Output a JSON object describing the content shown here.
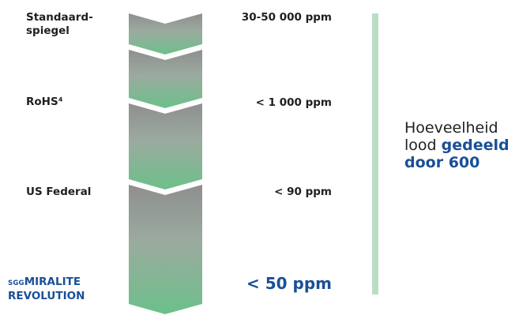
{
  "levels": [
    {
      "label_line1": "Standaard-",
      "label_line2": "spiegel",
      "value": "30-50 000 ppm"
    },
    {
      "label": "RoHS⁴",
      "value": "< 1 000 ppm"
    },
    {
      "label": "US Federal",
      "value": "< 90 ppm"
    }
  ],
  "product": {
    "brand": "SGG",
    "line1": "MIRALITE",
    "line2": "REVOLUTION",
    "value": "< 50 ppm"
  },
  "side_text": {
    "normal_line1": "Hoeveelheid",
    "normal_line2": "lood",
    "bold1": "gedeeld",
    "bold2": "door 600"
  },
  "colors": {
    "top_gray": "#8f8f8f",
    "bottom_green": "#6cc08a",
    "text_blue": "#1a4f97",
    "side_bar": "#b9dec4",
    "text_dark": "#1f1f1f"
  }
}
